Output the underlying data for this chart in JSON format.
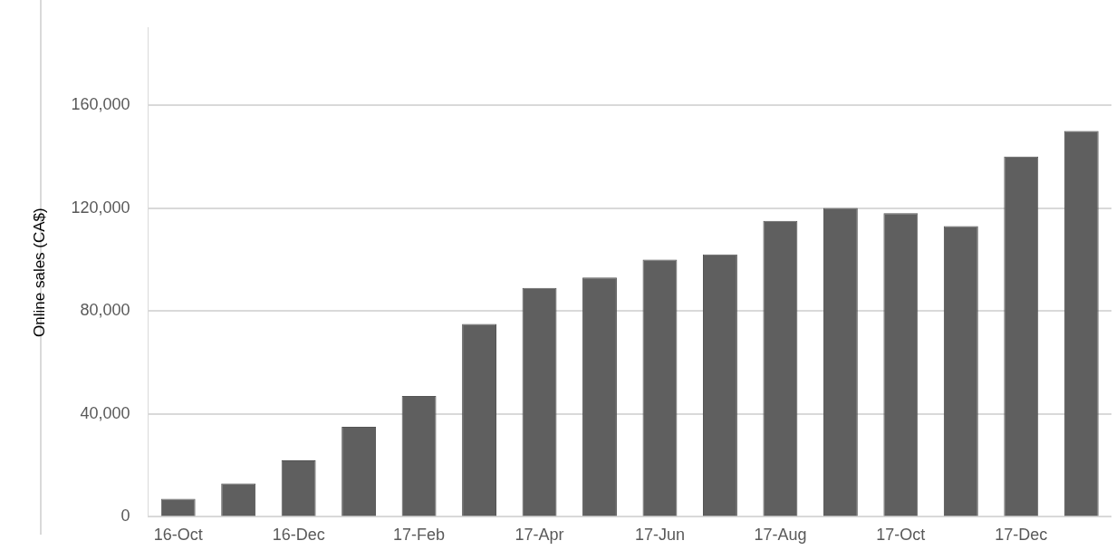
{
  "chart_data": {
    "type": "bar",
    "ylabel": "Online sales (CA$)",
    "categories": [
      "16-Oct",
      null,
      "16-Dec",
      null,
      "17-Feb",
      null,
      "17-Apr",
      null,
      "17-Jun",
      null,
      "17-Aug",
      null,
      "17-Oct",
      null,
      "17-Dec",
      null
    ],
    "values": [
      7000,
      13000,
      22000,
      35000,
      47000,
      75000,
      89000,
      93000,
      100000,
      102000,
      115000,
      120000,
      118000,
      113000,
      140000,
      150000
    ],
    "color": "#5f5f5f",
    "ylim": [
      0,
      190000
    ],
    "yticks": [
      {
        "value": 0,
        "label": "0"
      },
      {
        "value": 40000,
        "label": "40,000"
      },
      {
        "value": 80000,
        "label": "80,000"
      },
      {
        "value": 120000,
        "label": "120,000"
      },
      {
        "value": 160000,
        "label": "160,000"
      }
    ],
    "grid": "y",
    "legend": false
  }
}
